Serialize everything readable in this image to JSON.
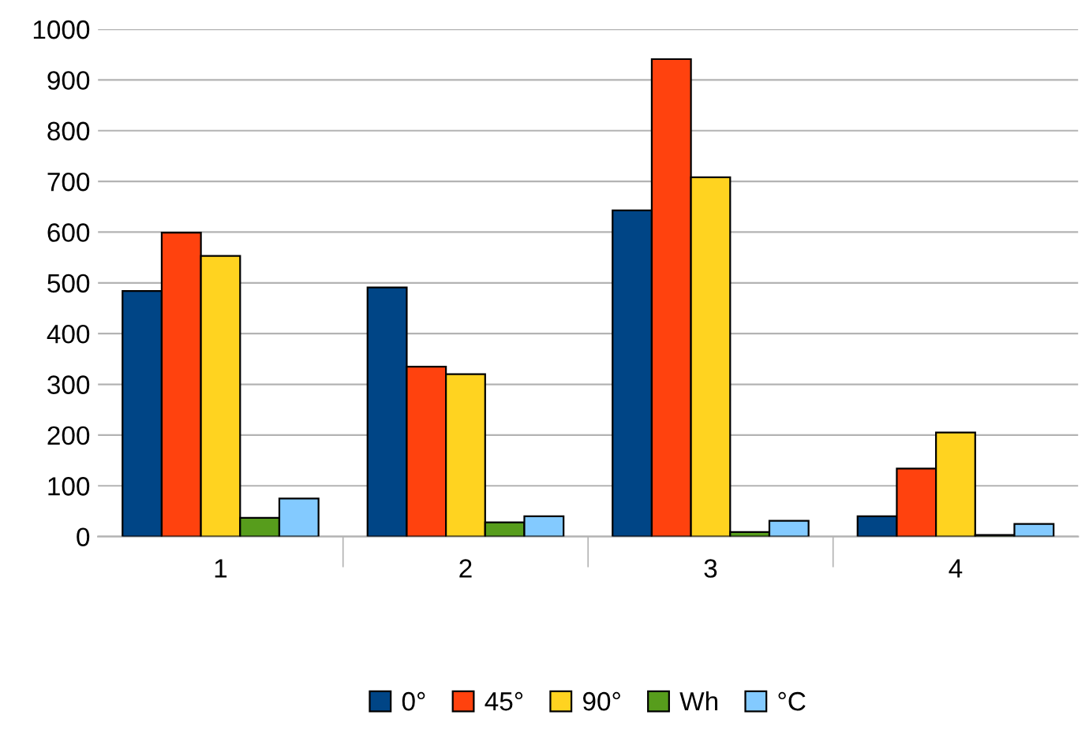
{
  "chart_data": {
    "type": "bar",
    "categories": [
      "1",
      "2",
      "3",
      "4"
    ],
    "series": [
      {
        "name": "0°",
        "color": "#004586",
        "values": [
          484,
          491,
          643,
          40
        ]
      },
      {
        "name": "45°",
        "color": "#ff420e",
        "values": [
          599,
          335,
          941,
          134
        ]
      },
      {
        "name": "90°",
        "color": "#ffd320",
        "values": [
          553,
          320,
          708,
          205
        ]
      },
      {
        "name": "Wh",
        "color": "#579d1c",
        "values": [
          37,
          28,
          9,
          3
        ]
      },
      {
        "name": "°C",
        "color": "#83caff",
        "values": [
          75,
          40,
          31,
          25
        ]
      }
    ],
    "ylim": [
      0,
      1000
    ],
    "yticks": [
      0,
      100,
      200,
      300,
      400,
      500,
      600,
      700,
      800,
      900,
      1000
    ],
    "grid": "y",
    "legend": "bottom"
  }
}
